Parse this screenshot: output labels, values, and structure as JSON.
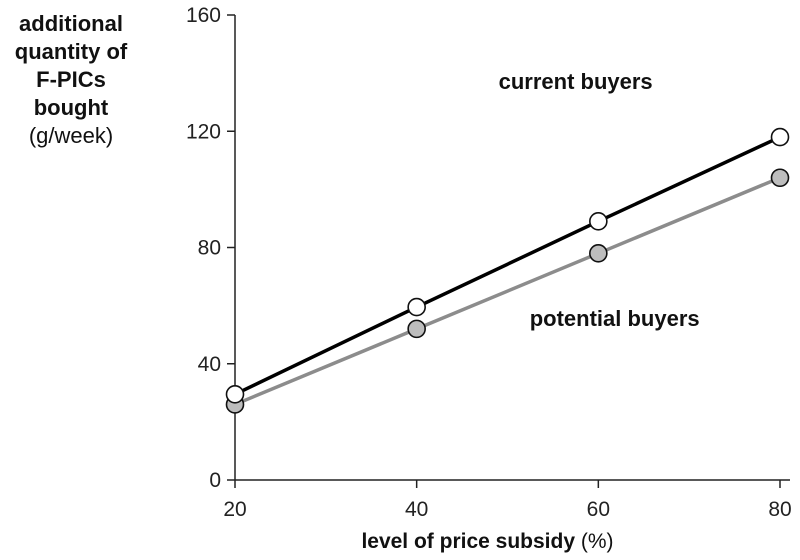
{
  "chart_data": {
    "type": "line",
    "ylabel_lines": [
      "additional",
      "quantity of",
      "F-PICs",
      "bought"
    ],
    "ylabel_unit": "(g/week)",
    "xlabel": "level of price subsidy",
    "xlabel_unit": "(%)",
    "x": [
      20,
      40,
      60,
      80
    ],
    "xlim": [
      20,
      80
    ],
    "ylim": [
      0,
      160
    ],
    "yticks": [
      0,
      40,
      80,
      120,
      160
    ],
    "xticks": [
      20,
      40,
      60,
      80
    ],
    "grid": false,
    "series": [
      {
        "name": "current buyers",
        "values": [
          29.5,
          59.5,
          89,
          118
        ],
        "color": "#000000",
        "marker_fill": "#ffffff"
      },
      {
        "name": "potential buyers",
        "values": [
          26,
          52,
          78,
          104
        ],
        "color": "#8c8c8c",
        "marker_fill": "#bdbdbd"
      }
    ]
  }
}
